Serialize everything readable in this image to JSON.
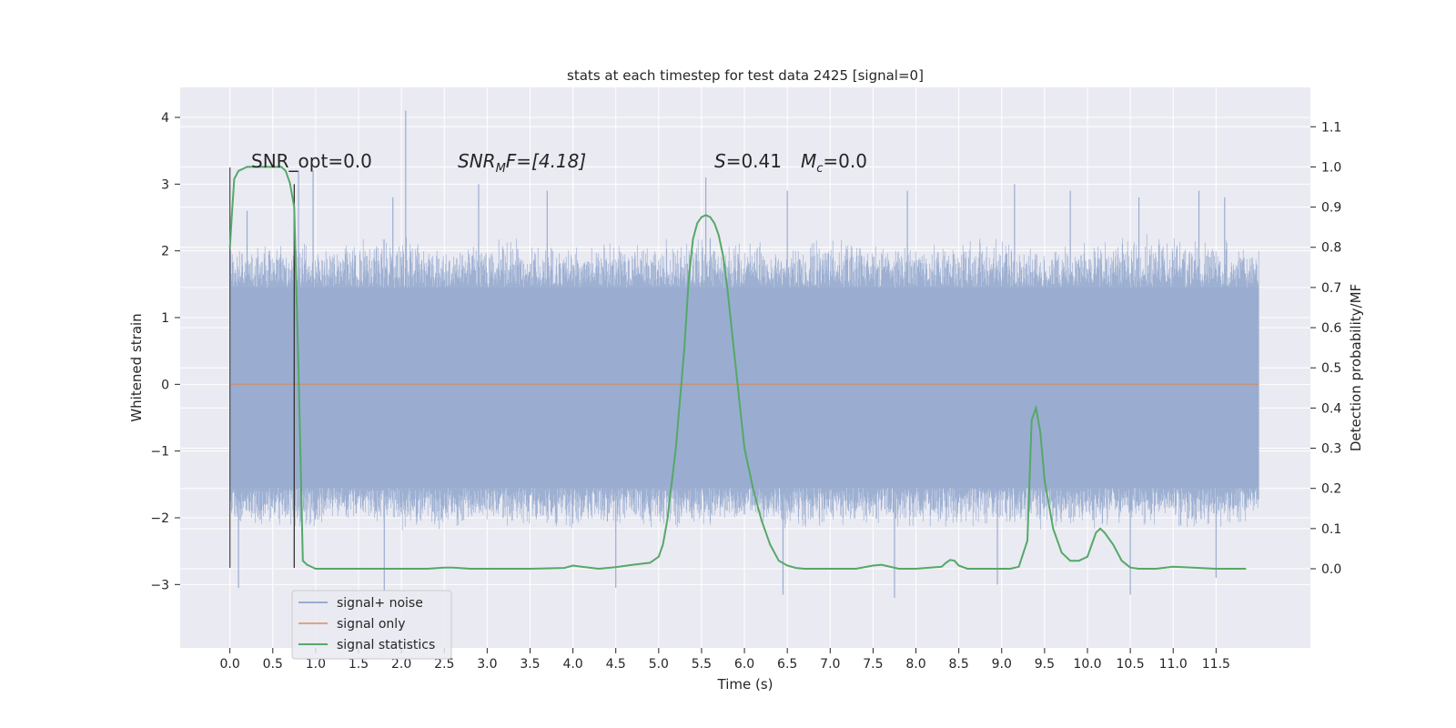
{
  "chart_data": {
    "type": "line",
    "title": "stats at each timestep for test data 2425 [signal=0]",
    "xlabel": "Time (s)",
    "ylabel_left": "Whitened strain",
    "ylabel_right": "Detection probability/MF",
    "xlim": [
      -0.58,
      12.6
    ],
    "ylim_left": [
      -3.95,
      4.45
    ],
    "ylim_right": [
      -0.197,
      1.198
    ],
    "x_ticks": [
      "0.0",
      "0.5",
      "1.0",
      "1.5",
      "2.0",
      "2.5",
      "3.0",
      "3.5",
      "4.0",
      "4.5",
      "5.0",
      "5.5",
      "6.0",
      "6.5",
      "7.0",
      "7.5",
      "8.0",
      "8.5",
      "9.0",
      "9.5",
      "10.0",
      "10.5",
      "11.0",
      "11.5"
    ],
    "y_ticks_left": [
      "4",
      "3",
      "2",
      "1",
      "0",
      "−1",
      "−2",
      "−3"
    ],
    "y_ticks_right": [
      "1.1",
      "1.0",
      "0.9",
      "0.8",
      "0.7",
      "0.6",
      "0.5",
      "0.4",
      "0.3",
      "0.2",
      "0.1",
      "0.0"
    ],
    "grid": true,
    "legend_position": "lower-left",
    "annotations": {
      "snr_opt": "SNR_opt=0.0",
      "snr_mf_sym": "SNR",
      "snr_mf_sub": "M",
      "snr_mf_rest": "F=[4.18]",
      "s_sym": "S",
      "s_rest": "=0.41",
      "mc_sym": "M",
      "mc_sub": "c",
      "mc_rest": "=0.0"
    },
    "noise_envelope": {
      "x": [
        0.0,
        0.5,
        1.0,
        1.5,
        2.0,
        2.5,
        3.0,
        3.5,
        4.0,
        4.5,
        5.0,
        5.5,
        6.0,
        6.5,
        7.0,
        7.5,
        8.0,
        8.5,
        9.0,
        9.5,
        10.0,
        10.5,
        11.0,
        11.5,
        12.0
      ],
      "typical_max": [
        2.2,
        2.2,
        2.1,
        2.2,
        2.3,
        2.1,
        2.2,
        2.2,
        2.1,
        2.2,
        2.2,
        2.3,
        2.2,
        2.1,
        2.2,
        2.2,
        2.1,
        2.2,
        2.2,
        2.1,
        2.2,
        2.3,
        2.2,
        2.2,
        2.1
      ],
      "typical_min": [
        -2.1,
        -2.2,
        -2.2,
        -2.1,
        -2.2,
        -2.2,
        -2.1,
        -2.2,
        -2.2,
        -2.1,
        -2.2,
        -2.2,
        -2.1,
        -2.2,
        -2.2,
        -2.1,
        -2.2,
        -2.2,
        -2.1,
        -2.2,
        -2.2,
        -2.1,
        -2.2,
        -2.2,
        -2.1
      ],
      "peak_spikes": [
        [
          0.2,
          2.6
        ],
        [
          0.8,
          3.2
        ],
        [
          0.97,
          3.2
        ],
        [
          1.9,
          2.8
        ],
        [
          2.05,
          4.1
        ],
        [
          2.9,
          3.0
        ],
        [
          3.7,
          2.9
        ],
        [
          5.55,
          3.1
        ],
        [
          6.5,
          2.9
        ],
        [
          7.9,
          2.9
        ],
        [
          9.15,
          3.0
        ],
        [
          9.8,
          2.9
        ],
        [
          10.6,
          2.8
        ],
        [
          11.3,
          2.9
        ],
        [
          11.6,
          2.8
        ],
        [
          0.1,
          -3.05
        ],
        [
          1.8,
          -3.1
        ],
        [
          4.5,
          -3.05
        ],
        [
          6.45,
          -3.15
        ],
        [
          7.75,
          -3.2
        ],
        [
          8.95,
          -3.0
        ],
        [
          10.5,
          -3.15
        ],
        [
          11.5,
          -2.9
        ]
      ]
    },
    "series": [
      {
        "name": "signal+ noise",
        "color": "#9aadd0"
      },
      {
        "name": "signal only",
        "color": "#dd8452",
        "x": [
          0,
          12
        ],
        "y": [
          0,
          0
        ]
      },
      {
        "name": "signal statistics",
        "color": "#55a868",
        "axis": "right",
        "x": [
          0.0,
          0.02,
          0.05,
          0.1,
          0.15,
          0.2,
          0.3,
          0.4,
          0.5,
          0.6,
          0.65,
          0.7,
          0.75,
          0.8,
          0.85,
          0.9,
          1.0,
          1.5,
          2.0,
          2.3,
          2.5,
          2.6,
          2.8,
          3.0,
          3.5,
          3.9,
          4.0,
          4.1,
          4.3,
          4.5,
          4.7,
          4.9,
          5.0,
          5.05,
          5.1,
          5.2,
          5.3,
          5.35,
          5.4,
          5.45,
          5.5,
          5.55,
          5.6,
          5.65,
          5.7,
          5.75,
          5.8,
          5.85,
          5.9,
          5.95,
          6.0,
          6.1,
          6.2,
          6.3,
          6.4,
          6.5,
          6.6,
          6.7,
          7.0,
          7.3,
          7.5,
          7.6,
          7.8,
          8.0,
          8.3,
          8.35,
          8.4,
          8.45,
          8.5,
          8.6,
          9.0,
          9.1,
          9.2,
          9.3,
          9.35,
          9.4,
          9.45,
          9.5,
          9.6,
          9.7,
          9.8,
          9.9,
          10.0,
          10.05,
          10.1,
          10.15,
          10.2,
          10.3,
          10.4,
          10.5,
          10.6,
          10.8,
          11.0,
          11.5,
          11.85
        ],
        "y": [
          0.8,
          0.87,
          0.97,
          0.99,
          0.995,
          1.0,
          1.0,
          1.0,
          1.0,
          1.0,
          0.99,
          0.96,
          0.9,
          0.5,
          0.02,
          0.01,
          0.0,
          0.0,
          0.0,
          0.0,
          0.003,
          0.003,
          0.0,
          0.0,
          0.0,
          0.002,
          0.008,
          0.005,
          0.0,
          0.004,
          0.01,
          0.015,
          0.03,
          0.06,
          0.12,
          0.3,
          0.55,
          0.72,
          0.82,
          0.86,
          0.875,
          0.88,
          0.875,
          0.86,
          0.83,
          0.78,
          0.7,
          0.6,
          0.5,
          0.4,
          0.3,
          0.2,
          0.12,
          0.06,
          0.02,
          0.008,
          0.002,
          0.0,
          0.0,
          0.0,
          0.008,
          0.01,
          0.0,
          0.0,
          0.005,
          0.015,
          0.022,
          0.02,
          0.008,
          0.0,
          0.0,
          0.0,
          0.005,
          0.07,
          0.37,
          0.4,
          0.34,
          0.22,
          0.1,
          0.04,
          0.02,
          0.02,
          0.03,
          0.06,
          0.09,
          0.1,
          0.09,
          0.06,
          0.02,
          0.003,
          0.0,
          0.0,
          0.005,
          0.0,
          0.0
        ]
      }
    ]
  }
}
